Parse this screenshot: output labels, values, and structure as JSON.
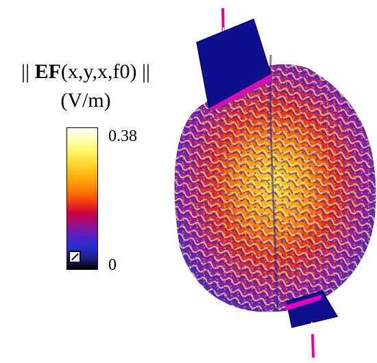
{
  "legend": {
    "title_bars_left": "||",
    "title_bold": "EF",
    "title_args": "(x,y,x,f0)",
    "title_bars_right": "||",
    "unit": "(V/m)",
    "max_label": "0.38",
    "min_label": "0"
  }
}
